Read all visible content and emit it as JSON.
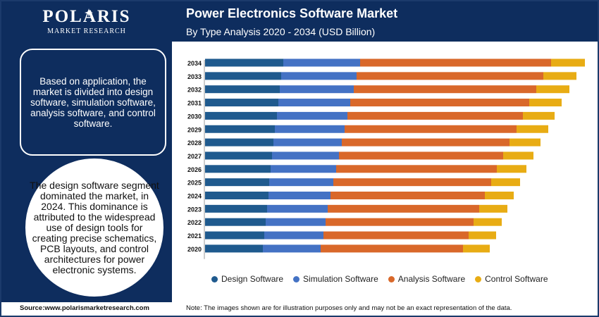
{
  "brand": {
    "name": "POLARIS",
    "tagline": "MARKET RESEARCH"
  },
  "header": {
    "title": "Power Electronics Software Market",
    "subtitle": "By Type Analysis 2020 - 2034 (USD Billion)"
  },
  "sidebar": {
    "box_text": "Based on application, the market is divided into design software, simulation software, analysis software, and control software.",
    "circle_text": "The design software segment dominated the market, in 2024. This dominance is attributed to the widespread use of design tools for creating precise schematics, PCB layouts, and control architectures for power electronic systems."
  },
  "footer": {
    "source": "Source:www.polarismarketresearch.com",
    "note": "Note: The images shown are for illustration purposes only and may not be an exact representation of the data."
  },
  "colors": {
    "navy": "#0e2d5e",
    "design": "#1f5a8e",
    "simulation": "#4472c4",
    "analysis": "#d9682a",
    "control": "#e8ac14"
  },
  "chart_data": {
    "type": "bar",
    "orientation": "horizontal",
    "stacked": true,
    "categories": [
      "2034",
      "2033",
      "2032",
      "2031",
      "2030",
      "2029",
      "2028",
      "2027",
      "2026",
      "2025",
      "2024",
      "2023",
      "2022",
      "2021",
      "2020"
    ],
    "series": [
      {
        "name": "Design Software",
        "color": "#1f5a8e",
        "values": [
          111,
          108,
          106,
          104,
          102,
          99,
          97,
          95,
          93,
          91,
          90,
          88,
          86,
          84,
          82
        ]
      },
      {
        "name": "Simulation Software",
        "color": "#4472c4",
        "values": [
          109,
          107,
          105,
          102,
          100,
          99,
          97,
          95,
          93,
          91,
          88,
          86,
          85,
          84,
          82
        ]
      },
      {
        "name": "Analysis Software",
        "color": "#d9682a",
        "values": [
          271,
          265,
          259,
          254,
          249,
          244,
          238,
          233,
          228,
          224,
          219,
          215,
          210,
          206,
          202
        ]
      },
      {
        "name": "Control Software",
        "color": "#e8ac14",
        "values": [
          48,
          47,
          47,
          46,
          45,
          45,
          44,
          43,
          42,
          41,
          41,
          40,
          40,
          39,
          38
        ]
      }
    ],
    "xlim": [
      0,
      540
    ],
    "grid": false,
    "legend_position": "bottom"
  }
}
